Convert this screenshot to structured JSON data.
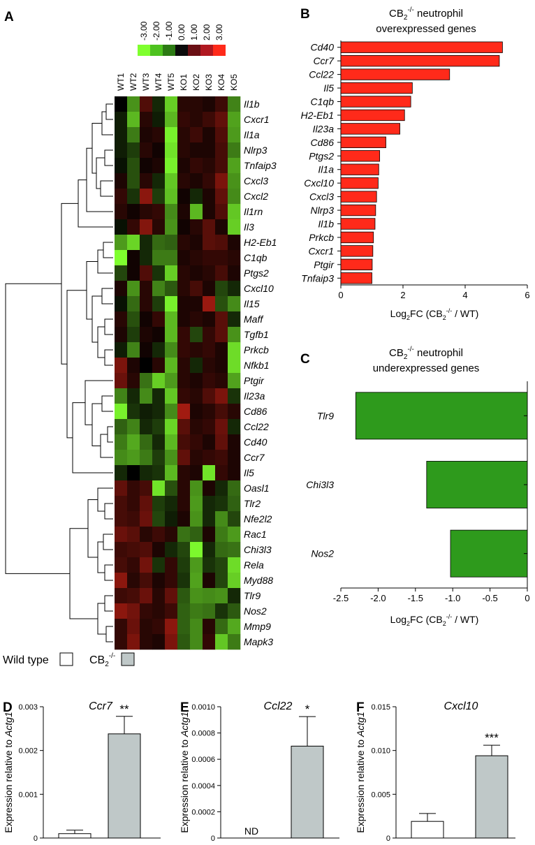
{
  "panel_labels": {
    "a": "A",
    "b": "B",
    "c": "C",
    "d": "D",
    "e": "E",
    "f": "F"
  },
  "colors": {
    "over_bar": "#ff2a1a",
    "under_bar": "#2e9a1c",
    "wt_bar": "#ffffff",
    "ko_bar": "#bfc8c8",
    "heat_scale": [
      "#7fff2e",
      "#4ec21f",
      "#2c7a14",
      "#0b0b0b",
      "#6a0f14",
      "#b01820",
      "#ff2a1a"
    ]
  },
  "chart_data": [
    {
      "type": "heatmap",
      "panel": "A",
      "color_scale_ticks": [
        "-3.00",
        "-2.00",
        "-1.00",
        "0.00",
        "1.00",
        "2.00",
        "3.00"
      ],
      "columns": [
        "WT1",
        "WT2",
        "WT3",
        "WT4",
        "WT5",
        "KO1",
        "KO2",
        "KO3",
        "KO4",
        "KO5"
      ],
      "rows": [
        "Il1b",
        "Cxcr1",
        "Il1a",
        "Nlrp3",
        "Tnfaip3",
        "Cxcl3",
        "Cxcl2",
        "Il1rn",
        "Il3",
        "H2-Eb1",
        "C1qb",
        "Ptgs2",
        "Cxcl10",
        "Il15",
        "Maff",
        "Tgfb1",
        "Prkcb",
        "Nfkb1",
        "Ptgir",
        "Il23a",
        "Cd86",
        "Ccl22",
        "Cd40",
        "Ccr7",
        "Il5",
        "Oasl1",
        "Tlr2",
        "Nfe2l2",
        "Rac1",
        "Chi3l3",
        "Rela",
        "Myd88",
        "Tlr9",
        "Nos2",
        "Mmp9",
        "Mapk3"
      ],
      "values": [
        [
          0.0,
          -1.5,
          0.7,
          -0.3,
          -2.3,
          0.3,
          0.3,
          0.2,
          0.5,
          -1.3
        ],
        [
          -0.2,
          -2.0,
          0.3,
          -0.2,
          -2.0,
          0.4,
          0.3,
          0.5,
          0.9,
          -1.7
        ],
        [
          -0.2,
          -1.2,
          0.2,
          0.3,
          -2.8,
          0.3,
          0.5,
          0.2,
          0.7,
          -1.6
        ],
        [
          -0.2,
          -0.5,
          0.3,
          0.1,
          -2.6,
          0.3,
          0.2,
          0.2,
          0.6,
          -1.2
        ],
        [
          -0.1,
          -0.7,
          0.1,
          0.2,
          -2.8,
          0.2,
          0.4,
          0.3,
          0.6,
          -1.7
        ],
        [
          0.2,
          -0.7,
          0.3,
          -0.3,
          -2.2,
          0.3,
          0.2,
          0.4,
          1.2,
          -1.5
        ],
        [
          0.4,
          -0.4,
          1.4,
          -0.5,
          -2.1,
          0.1,
          -0.3,
          0.2,
          0.9,
          -1.4
        ],
        [
          0.3,
          0.1,
          0.3,
          0.4,
          -1.4,
          0.2,
          -2.0,
          0.2,
          0.7,
          -2.2
        ],
        [
          -0.1,
          0.4,
          1.3,
          0.3,
          -1.5,
          0.1,
          0.3,
          0.8,
          0.2,
          -2.3
        ],
        [
          -1.6,
          -2.4,
          -0.3,
          -1.0,
          -0.9,
          0.3,
          0.2,
          0.8,
          0.7,
          0.2
        ],
        [
          -3.0,
          0.1,
          -0.3,
          -1.2,
          -1.2,
          0.2,
          0.3,
          0.4,
          0.4,
          0.3
        ],
        [
          -0.6,
          0.1,
          0.7,
          -0.4,
          -2.3,
          0.3,
          0.2,
          0.3,
          0.6,
          0.2
        ],
        [
          0.2,
          -1.5,
          0.3,
          -1.3,
          -0.8,
          0.3,
          0.6,
          0.2,
          -0.6,
          -0.3
        ],
        [
          -0.1,
          -1.0,
          0.3,
          -0.5,
          -2.8,
          0.2,
          0.2,
          1.6,
          -0.7,
          -1.4
        ],
        [
          0.3,
          -0.7,
          0.1,
          0.4,
          -2.0,
          0.2,
          0.3,
          0.2,
          0.8,
          -0.3
        ],
        [
          0.2,
          -0.5,
          0.2,
          0.1,
          -2.0,
          0.4,
          -0.6,
          0.4,
          0.8,
          -1.5
        ],
        [
          -0.2,
          -1.3,
          0.1,
          -0.3,
          -1.4,
          0.4,
          0.3,
          0.4,
          0.2,
          -2.5
        ],
        [
          1.2,
          0.2,
          0.0,
          0.3,
          -2.0,
          0.3,
          -0.3,
          0.3,
          0.2,
          -2.5
        ],
        [
          1.0,
          0.3,
          -1.1,
          -2.3,
          -1.6,
          0.3,
          0.2,
          0.4,
          0.3,
          -1.7
        ],
        [
          -1.3,
          -0.3,
          -1.4,
          -0.3,
          -2.2,
          0.4,
          0.3,
          0.7,
          1.2,
          -0.4
        ],
        [
          -2.8,
          -0.4,
          -0.2,
          -0.3,
          -1.4,
          1.7,
          0.2,
          0.3,
          0.6,
          0.3
        ],
        [
          -0.9,
          -1.3,
          -0.3,
          -0.5,
          -2.4,
          0.8,
          0.3,
          0.4,
          1.0,
          -0.3
        ],
        [
          -1.2,
          -1.8,
          -1.0,
          -0.3,
          -2.0,
          0.6,
          0.4,
          0.2,
          0.9,
          0.2
        ],
        [
          -1.4,
          -1.6,
          -1.2,
          -0.5,
          -1.5,
          0.9,
          0.3,
          0.4,
          0.5,
          0.2
        ],
        [
          -0.3,
          0.0,
          -0.3,
          -0.4,
          -2.0,
          0.3,
          0.2,
          -2.6,
          0.4,
          0.2
        ],
        [
          0.9,
          0.4,
          0.6,
          -2.6,
          -0.7,
          0.3,
          -1.5,
          0.2,
          -0.3,
          -1.0
        ],
        [
          0.6,
          0.4,
          0.9,
          -0.5,
          -0.3,
          0.3,
          -1.6,
          -0.3,
          -0.4,
          -0.9
        ],
        [
          0.6,
          0.5,
          1.0,
          -0.6,
          -0.2,
          0.2,
          -1.5,
          -0.3,
          -1.4,
          -0.6
        ],
        [
          1.0,
          0.8,
          0.3,
          0.5,
          0.3,
          -1.1,
          -0.9,
          0.2,
          -1.2,
          -1.6
        ],
        [
          0.5,
          0.6,
          0.7,
          0.2,
          -0.3,
          -0.6,
          -2.9,
          -0.3,
          -1.0,
          -1.1
        ],
        [
          0.6,
          0.4,
          1.1,
          -0.4,
          0.4,
          -0.5,
          -1.6,
          -0.4,
          -0.6,
          -2.5
        ],
        [
          1.4,
          0.3,
          0.6,
          0.2,
          0.4,
          -0.4,
          -1.7,
          0.2,
          -0.6,
          -2.3
        ],
        [
          0.5,
          0.6,
          1.0,
          0.3,
          0.9,
          -0.8,
          -1.5,
          -1.4,
          -1.5,
          -0.3
        ],
        [
          1.4,
          1.1,
          0.4,
          0.3,
          0.5,
          -0.9,
          -1.2,
          -1.1,
          -0.4,
          -0.8
        ],
        [
          0.4,
          1.0,
          0.3,
          0.4,
          1.4,
          -0.9,
          -1.4,
          0.3,
          -1.0,
          -1.8
        ],
        [
          0.4,
          1.2,
          0.3,
          0.2,
          1.2,
          -0.8,
          -1.4,
          0.4,
          -2.2,
          -1.2
        ]
      ]
    },
    {
      "type": "bar",
      "panel": "B",
      "orientation": "horizontal",
      "title_html": "CB<sub>2</sub><sup>-/-</sup> neutrophil",
      "title_prefix": "CB",
      "title_sub": "2",
      "title_sup": "-/-",
      "title_rest": " neutrophil",
      "title_line2": "overexpressed genes",
      "xlabel_prefix": "Log",
      "xlabel_sub": "2",
      "xlabel_mid": "FC (CB",
      "xlabel_sub2": "2",
      "xlabel_sup2": "-/-",
      "xlabel_end": " / WT)",
      "categories": [
        "Cd40",
        "Ccr7",
        "Ccl22",
        "Il5",
        "C1qb",
        "H2-Eb1",
        "Il23a",
        "Cd86",
        "Ptgs2",
        "Il1a",
        "Cxcl10",
        "Cxcl3",
        "Nlrp3",
        "Il1b",
        "Prkcb",
        "Cxcr1",
        "Ptgir",
        "Tnfaip3"
      ],
      "values": [
        5.2,
        5.1,
        3.5,
        2.3,
        2.25,
        2.05,
        1.9,
        1.45,
        1.25,
        1.22,
        1.2,
        1.15,
        1.12,
        1.1,
        1.05,
        1.03,
        1.01,
        1.0
      ],
      "xlim": [
        0,
        6
      ],
      "xticks": [
        "0",
        "2",
        "4",
        "6"
      ]
    },
    {
      "type": "bar",
      "panel": "C",
      "orientation": "horizontal",
      "title_prefix": "CB",
      "title_sub": "2",
      "title_sup": "-/-",
      "title_rest": " neutrophil",
      "title_line2": "underexpressed genes",
      "xlabel_prefix": "Log",
      "xlabel_sub": "2",
      "xlabel_mid": "FC (CB",
      "xlabel_sub2": "2",
      "xlabel_sup2": "-/-",
      "xlabel_end": " / WT)",
      "categories": [
        "Tlr9",
        "Chi3l3",
        "Nos2"
      ],
      "values": [
        -2.3,
        -1.35,
        -1.03
      ],
      "xlim": [
        -2.5,
        0
      ],
      "xticks": [
        "-2.5",
        "-2.0",
        "-1.5",
        "-1.0",
        "-0.5",
        "0"
      ]
    },
    {
      "type": "bar",
      "panel": "D",
      "title": "Ccr7",
      "categories": [
        "Wild type",
        "CB2-/-"
      ],
      "values": [
        0.0001,
        0.00238
      ],
      "errors": [
        8e-05,
        0.0004
      ],
      "ylim": [
        0,
        0.003
      ],
      "yticks": [
        "0",
        "0.001",
        "0.002",
        "0.003"
      ],
      "ylabel_prefix": "Expression relative to ",
      "ylabel_gene": "Actg1",
      "significance": "**"
    },
    {
      "type": "bar",
      "panel": "E",
      "title": "Ccl22",
      "categories": [
        "Wild type",
        "CB2-/-"
      ],
      "values": [
        0,
        0.0007
      ],
      "errors": [
        0,
        0.000225
      ],
      "ylim": [
        0,
        0.001
      ],
      "yticks": [
        "0",
        "0.0002",
        "0.0004",
        "0.0006",
        "0.0008",
        "0.0010"
      ],
      "ylabel_prefix": "Expression relative to ",
      "ylabel_gene": "Actg1",
      "significance": "*",
      "annotation": "ND"
    },
    {
      "type": "bar",
      "panel": "F",
      "title": "Cxcl10",
      "categories": [
        "Wild type",
        "CB2-/-"
      ],
      "values": [
        0.0019,
        0.0094
      ],
      "errors": [
        0.0009,
        0.0012
      ],
      "ylim": [
        0,
        0.015
      ],
      "yticks": [
        "0",
        "0.005",
        "0.010",
        "0.015"
      ],
      "ylabel_prefix": "Expression relative to ",
      "ylabel_gene": "Actg1",
      "significance": "***"
    }
  ],
  "legend": {
    "wild_type": "Wild type",
    "ko_prefix": "CB",
    "ko_sub": "2",
    "ko_sup": "-/-"
  }
}
